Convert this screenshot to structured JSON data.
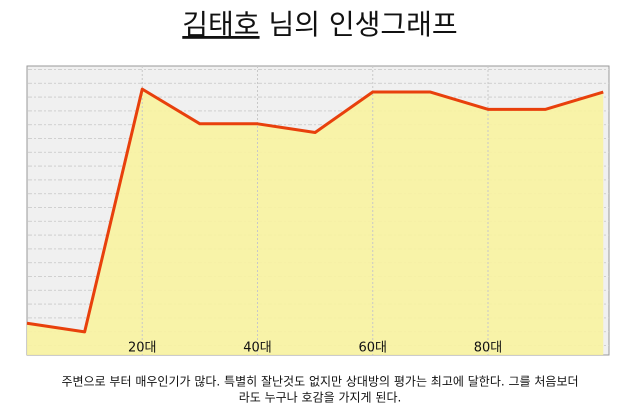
{
  "chart_data": {
    "type": "area",
    "title_name": "김태호",
    "title_rest": "님의 인생그래프",
    "x": [
      0,
      10,
      20,
      30,
      40,
      50,
      60,
      70,
      80,
      90,
      100
    ],
    "series": [
      {
        "color": "#e8400c",
        "values": [
          11,
          8,
          92,
          80,
          80,
          77,
          91,
          91,
          85,
          85,
          91
        ]
      }
    ],
    "fill": "#f8f3a0",
    "xlim": [
      0,
      101
    ],
    "ylim": [
      0,
      100
    ],
    "xticks": [
      {
        "value": 20,
        "label": "20대"
      },
      {
        "value": 40,
        "label": "40대"
      },
      {
        "value": 60,
        "label": "60대"
      },
      {
        "value": 80,
        "label": "80대"
      }
    ],
    "grid": true,
    "caption": [
      "주변으로 부터 매우인기가 많다. 특별히 잘난것도 없지만 상대방의 평가는 최고에 달한다. 그를 처음보더",
      "라도 누구나 호감을 가지게 된다."
    ]
  }
}
